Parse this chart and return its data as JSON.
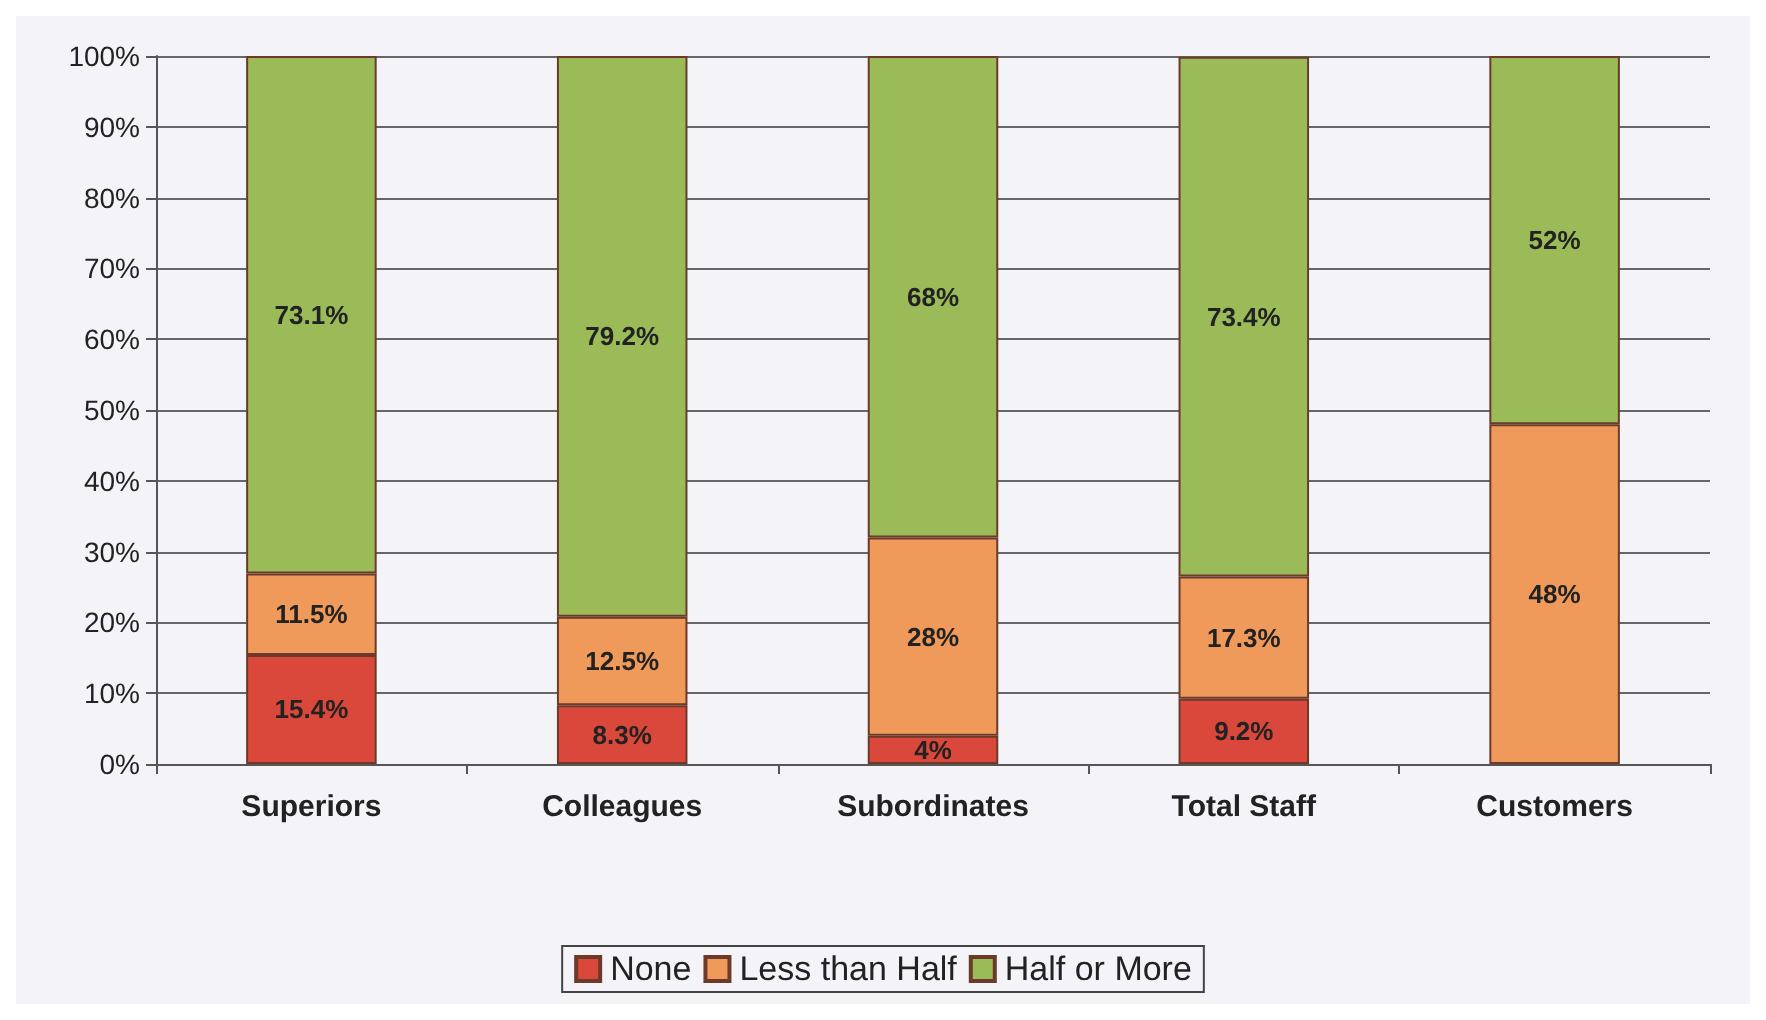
{
  "chart_data": {
    "type": "bar",
    "stacked": true,
    "categories": [
      "Superiors",
      "Colleagues",
      "Subordinates",
      "Total Staff",
      "Customers"
    ],
    "series": [
      {
        "name": "None",
        "color": "#d9483b",
        "values": [
          15.4,
          8.3,
          4,
          9.2,
          null
        ],
        "value_labels": [
          "15.4%",
          "8.3%",
          "4%",
          "9.2%",
          null
        ]
      },
      {
        "name": "Less than Half",
        "color": "#ef9a5a",
        "values": [
          11.5,
          12.5,
          28,
          17.3,
          48
        ],
        "value_labels": [
          "11.5%",
          "12.5%",
          "28%",
          "17.3%",
          "48%"
        ]
      },
      {
        "name": "Half or More",
        "color": "#9bbb59",
        "values": [
          73.1,
          79.2,
          68,
          73.4,
          52
        ],
        "value_labels": [
          "73.1%",
          "79.2%",
          "68%",
          "73.4%",
          "52%"
        ]
      }
    ],
    "ylim": [
      0,
      100
    ],
    "yticks": [
      {
        "value": 0,
        "label": "0%"
      },
      {
        "value": 10,
        "label": "10%"
      },
      {
        "value": 20,
        "label": "20%"
      },
      {
        "value": 30,
        "label": "30%"
      },
      {
        "value": 40,
        "label": "40%"
      },
      {
        "value": 50,
        "label": "50%"
      },
      {
        "value": 60,
        "label": "60%"
      },
      {
        "value": 70,
        "label": "70%"
      },
      {
        "value": 80,
        "label": "80%"
      },
      {
        "value": 90,
        "label": "90%"
      },
      {
        "value": 100,
        "label": "100%"
      }
    ],
    "grid": "y",
    "legend": "bottom"
  }
}
